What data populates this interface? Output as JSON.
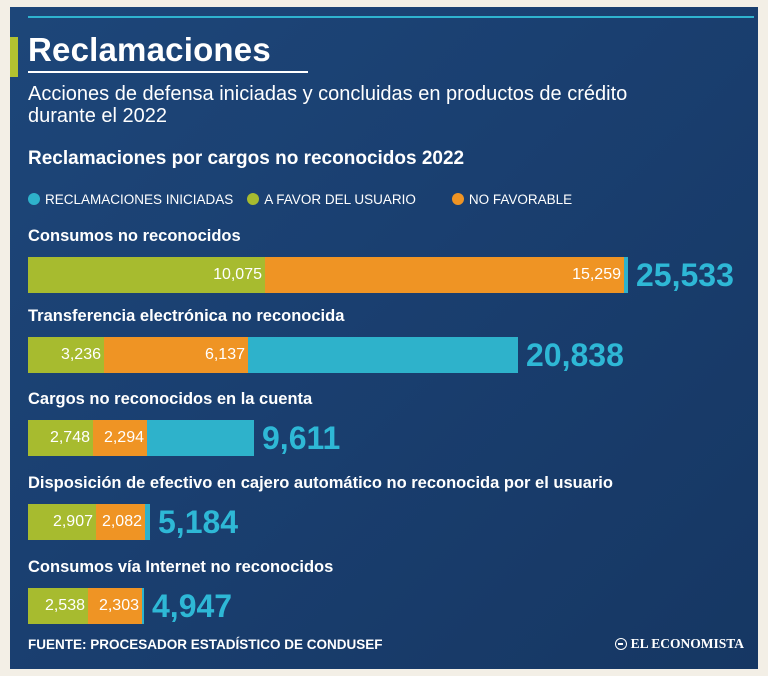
{
  "header": {
    "title": "Reclamaciones",
    "subtitle": "Acciones de defensa iniciadas y concluidas en productos de crédito durante el 2022"
  },
  "colors": {
    "iniciadas": "#2eb2cb",
    "favor": "#a7bb2f",
    "no_favorable": "#ef9424",
    "background": "#1b416f"
  },
  "chart_data": {
    "type": "bar",
    "title": "Reclamaciones por cargos no reconocidos 2022",
    "orientation": "horizontal",
    "legend": [
      "RECLAMACIONES INICIADAS",
      "A FAVOR DEL USUARIO",
      "NO FAVORABLE"
    ],
    "categories": [
      "Consumos no reconocidos",
      "Transferencia electrónica no reconocida",
      "Cargos no reconocidos en la cuenta",
      "Disposición de efectivo en cajero automático no reconocida por el usuario",
      "Consumos vía Internet no reconocidos"
    ],
    "series": [
      {
        "name": "RECLAMACIONES INICIADAS",
        "values": [
          25533,
          20838,
          9611,
          5184,
          4947
        ]
      },
      {
        "name": "A FAVOR DEL USUARIO",
        "values": [
          10075,
          3236,
          2748,
          2907,
          2538
        ]
      },
      {
        "name": "NO FAVORABLE",
        "values": [
          15259,
          6137,
          2294,
          2082,
          2303
        ]
      }
    ],
    "display": {
      "totals": [
        "25,533",
        "20,838",
        "9,611",
        "5,184",
        "4,947"
      ],
      "favor": [
        "10,075",
        "3,236",
        "2,748",
        "2,907",
        "2,538"
      ],
      "no_favorable": [
        "15,259",
        "6,137",
        "2,294",
        "2,082",
        "2,303"
      ]
    }
  },
  "footer": {
    "source": "FUENTE: PROCESADOR ESTADÍSTICO DE CONDUSEF",
    "brand": "EL ECONOMISTA"
  }
}
